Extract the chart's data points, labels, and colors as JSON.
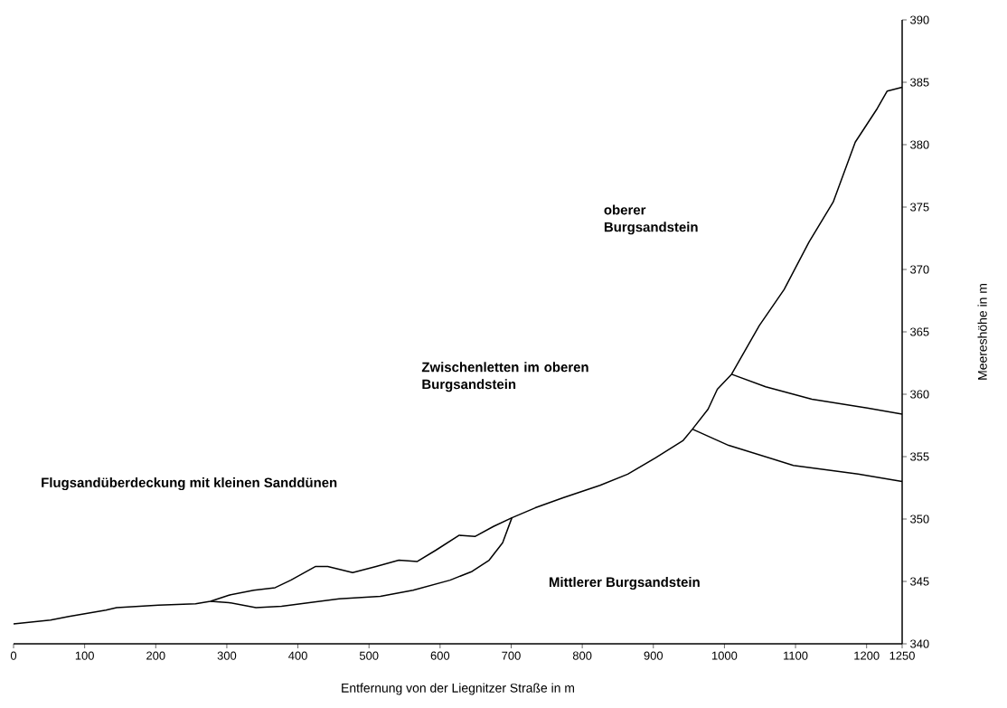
{
  "chart_data": {
    "type": "line",
    "xlabel": "Entfernung von der Liegnitzer Straße in m",
    "ylabel": "Meereshöhe in m",
    "xlim": [
      0,
      1250
    ],
    "ylim": [
      340,
      390
    ],
    "xticks": [
      0,
      100,
      200,
      300,
      400,
      500,
      600,
      700,
      800,
      900,
      1000,
      1100,
      1200,
      1250
    ],
    "yticks": [
      340,
      345,
      350,
      355,
      360,
      365,
      370,
      375,
      380,
      385,
      390
    ],
    "grid": false,
    "marker": "none",
    "line_style": "solid",
    "series": [
      {
        "color": "#000000",
        "x": [
          0,
          52,
          78,
          130,
          145,
          204,
          256,
          277,
          303,
          338,
          368,
          390,
          425,
          442,
          477,
          510,
          542,
          568,
          594,
          627,
          649,
          675,
          701,
          734,
          773,
          825,
          864,
          903,
          942,
          955,
          977,
          990,
          1010,
          1049,
          1084,
          1119,
          1153,
          1184,
          1215,
          1229,
          1250
        ],
        "values": [
          341.6,
          341.9,
          342.2,
          342.7,
          342.9,
          343.1,
          343.2,
          343.4,
          343.9,
          344.3,
          344.5,
          345.1,
          346.2,
          346.2,
          345.7,
          346.2,
          346.7,
          346.6,
          347.5,
          348.7,
          348.6,
          349.4,
          350.1,
          350.9,
          351.7,
          352.7,
          353.6,
          354.9,
          356.3,
          357.2,
          358.8,
          360.4,
          361.6,
          365.5,
          368.4,
          372.2,
          375.4,
          380.2,
          382.9,
          384.3,
          384.6
        ]
      },
      {
        "color": "#000000",
        "x": [
          277,
          303,
          341,
          377,
          416,
          458,
          516,
          562,
          614,
          645,
          669,
          688,
          701
        ],
        "values": [
          343.4,
          343.3,
          342.9,
          343.0,
          343.3,
          343.6,
          343.8,
          344.3,
          345.1,
          345.8,
          346.7,
          348.1,
          350.1
        ]
      },
      {
        "color": "#000000",
        "x": [
          955,
          1006,
          1097,
          1188,
          1250
        ],
        "values": [
          357.2,
          355.9,
          354.3,
          353.6,
          353.0
        ]
      },
      {
        "color": "#000000",
        "x": [
          1010,
          1058,
          1123,
          1201,
          1250
        ],
        "values": [
          361.6,
          360.6,
          359.6,
          358.9,
          358.4
        ]
      }
    ],
    "annotations": [
      "Flugsandüberdeckung mit kleinen Sanddünen",
      "Zwischenletten im oberen Burgsandstein",
      "oberer Burgsandstein",
      "Mittlerer Burgsandstein"
    ]
  }
}
